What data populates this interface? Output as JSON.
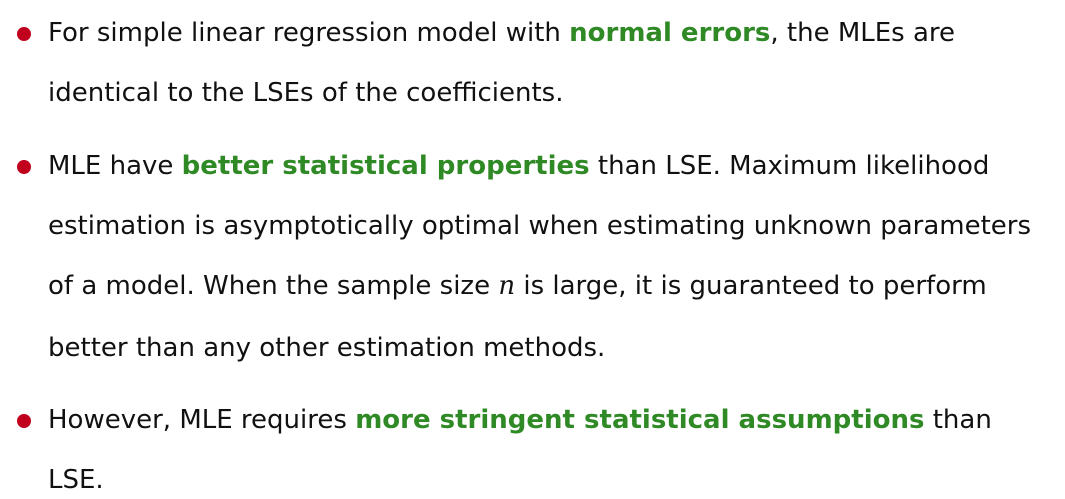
{
  "bullets": [
    {
      "lines": [
        {
          "t1": "For simple linear regression model with ",
          "em": "normal errors",
          "t2": ", the MLEs are"
        },
        {
          "t1": "identical to the LSEs of the coefficients."
        }
      ]
    },
    {
      "lines": [
        {
          "t1": "MLE have ",
          "em": "better statistical properties",
          "t2": " than LSE. Maximum likelihood"
        },
        {
          "t1": "estimation is asymptotically optimal when estimating unknown parameters"
        },
        {
          "t1": "of a model. When the sample size ",
          "math": "n",
          "t2": " is large, it is guaranteed to perform"
        },
        {
          "t1": "better than any other estimation methods."
        }
      ]
    },
    {
      "lines": [
        {
          "t1": "However, MLE requires ",
          "em": "more stringent statistical assumptions",
          "t2": " than"
        },
        {
          "t1": "LSE."
        }
      ]
    }
  ],
  "colors": {
    "bullet": "#c0001c",
    "emphasis": "#2f8a26",
    "text": "#111111"
  }
}
